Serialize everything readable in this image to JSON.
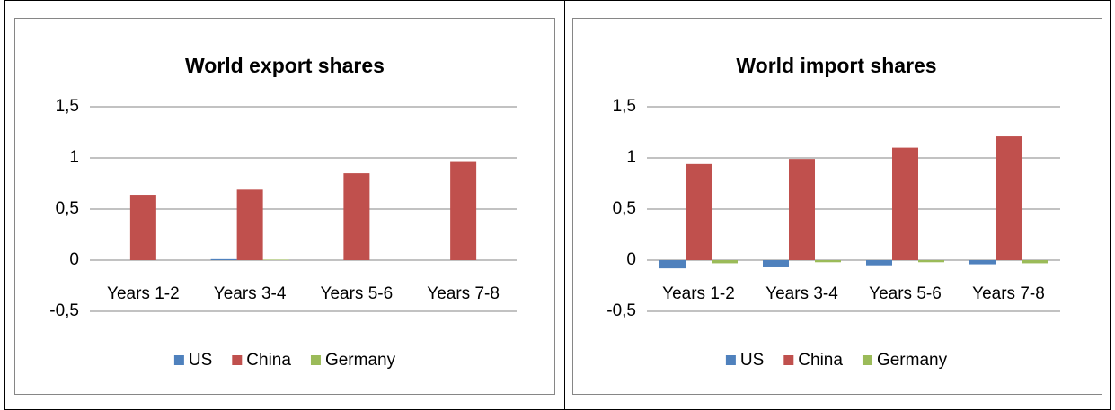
{
  "chart_data": [
    {
      "type": "bar",
      "title": "World export shares",
      "categories": [
        "Years 1-2",
        "Years 3-4",
        "Years 5-6",
        "Years 7-8"
      ],
      "series": [
        {
          "name": "US",
          "color": "#4f81bd",
          "values": [
            0,
            0.01,
            0,
            0
          ]
        },
        {
          "name": "China",
          "color": "#c0504d",
          "values": [
            0.64,
            0.69,
            0.85,
            0.96
          ]
        },
        {
          "name": "Germany",
          "color": "#9bbb59",
          "values": [
            0,
            0.005,
            0,
            0
          ]
        }
      ],
      "ylim": [
        -0.5,
        1.5
      ],
      "yticks": [
        {
          "value": -0.5,
          "label": "-0,5"
        },
        0,
        {
          "value": 0.5,
          "label": "0,5"
        },
        1,
        {
          "value": 1.5,
          "label": "1,5"
        }
      ],
      "grid": true,
      "legend": "bottom"
    },
    {
      "type": "bar",
      "title": "World import shares",
      "categories": [
        "Years 1-2",
        "Years 3-4",
        "Years 5-6",
        "Years 7-8"
      ],
      "series": [
        {
          "name": "US",
          "color": "#4f81bd",
          "values": [
            -0.08,
            -0.07,
            -0.05,
            -0.04
          ]
        },
        {
          "name": "China",
          "color": "#c0504d",
          "values": [
            0.94,
            0.99,
            1.1,
            1.21
          ]
        },
        {
          "name": "Germany",
          "color": "#9bbb59",
          "values": [
            -0.03,
            -0.02,
            -0.02,
            -0.03
          ]
        }
      ],
      "ylim": [
        -0.5,
        1.5
      ],
      "yticks": [
        {
          "value": -0.5,
          "label": "-0,5"
        },
        0,
        {
          "value": 0.5,
          "label": "0,5"
        },
        1,
        {
          "value": 1.5,
          "label": "1,5"
        }
      ],
      "grid": true,
      "legend": "bottom"
    }
  ]
}
